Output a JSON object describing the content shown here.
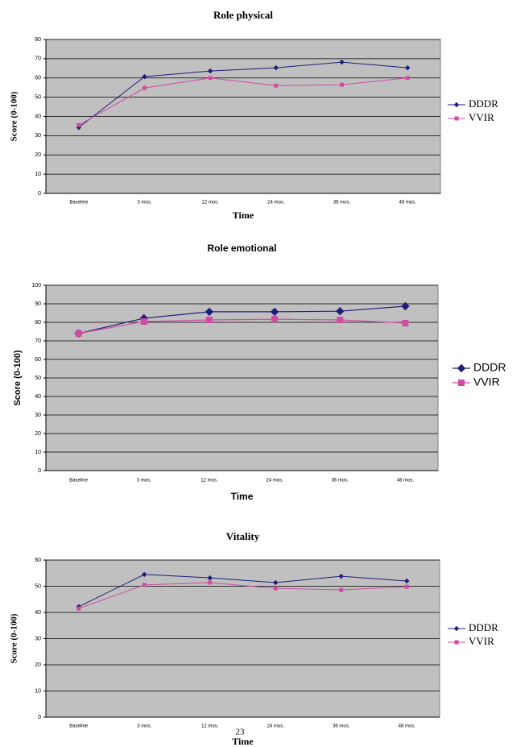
{
  "page_number": "23",
  "chart_data": [
    {
      "type": "line",
      "title": "Role physical",
      "x_label": "Time",
      "y_label": "Score (0-100)",
      "categories": [
        "Baseline",
        "3 mos.",
        "12 mos.",
        "24 mos.",
        "36 mos.",
        "48 mos."
      ],
      "series": [
        {
          "name": "DDDR",
          "color": "#1f1f7a",
          "marker": "diamond",
          "values": [
            34.3,
            60.7,
            63.6,
            65.3,
            68.2,
            65.3
          ]
        },
        {
          "name": "VVIR",
          "color": "#d04ca0",
          "marker": "square",
          "values": [
            35.5,
            54.8,
            60,
            56,
            56.5,
            60
          ]
        }
      ],
      "ylim": [
        0,
        80
      ],
      "yticks": [
        0,
        10,
        20,
        30,
        40,
        50,
        60,
        70,
        80
      ],
      "grid": true,
      "legend": "right"
    },
    {
      "type": "line",
      "title": "Role emotional",
      "x_label": "Time",
      "y_label": "Score (0-100)",
      "categories": [
        "Baseline",
        "3 mos.",
        "12 mos.",
        "24 mos.",
        "36 mos.",
        "48 mos."
      ],
      "series": [
        {
          "name": "DDDR",
          "color": "#1f1f7a",
          "marker": "diamond",
          "values": [
            74,
            82.2,
            85.7,
            85.7,
            86,
            88.7
          ]
        },
        {
          "name": "VVIR",
          "color": "#d04ca0",
          "marker": "square",
          "values": [
            74,
            80.4,
            81.3,
            81.7,
            81.3,
            79.6
          ]
        }
      ],
      "ylim": [
        0,
        100
      ],
      "yticks": [
        0,
        10,
        20,
        30,
        40,
        50,
        60,
        70,
        80,
        90,
        100
      ],
      "grid": true,
      "legend": "right"
    },
    {
      "type": "line",
      "title": "Vitality",
      "x_label": "Time",
      "y_label": "Score (0-100)",
      "categories": [
        "Baseline",
        "3 mos.",
        "12 mos.",
        "24 mos.",
        "36 mos.",
        "48 mos."
      ],
      "series": [
        {
          "name": "DDDR",
          "color": "#1f1f7a",
          "marker": "diamond",
          "values": [
            42.2,
            54.5,
            53.2,
            51.4,
            53.8,
            52
          ]
        },
        {
          "name": "VVIR",
          "color": "#d04ca0",
          "marker": "square",
          "values": [
            41.5,
            50.5,
            51.4,
            49.2,
            48.6,
            49.8
          ]
        }
      ],
      "ylim": [
        0,
        60
      ],
      "yticks": [
        0,
        10,
        20,
        30,
        40,
        50,
        60
      ],
      "grid": true,
      "legend": "right"
    }
  ]
}
